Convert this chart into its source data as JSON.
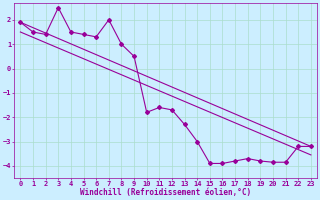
{
  "xlabel": "Windchill (Refroidissement éolien,°C)",
  "xlim": [
    -0.5,
    23.5
  ],
  "ylim": [
    -4.5,
    2.7
  ],
  "yticks": [
    -4,
    -3,
    -2,
    -1,
    0,
    1,
    2
  ],
  "xticks": [
    0,
    1,
    2,
    3,
    4,
    5,
    6,
    7,
    8,
    9,
    10,
    11,
    12,
    13,
    14,
    15,
    16,
    17,
    18,
    19,
    20,
    21,
    22,
    23
  ],
  "bg_color": "#cceeff",
  "grid_color": "#aaddcc",
  "line_color": "#990099",
  "marker": "D",
  "markersize": 2.0,
  "linewidth": 0.8,
  "series1_x": [
    0,
    1,
    2,
    3,
    4,
    5,
    6,
    7,
    8,
    9,
    10,
    11,
    12,
    13,
    14,
    15,
    16,
    17,
    18,
    19,
    20,
    21,
    22,
    23
  ],
  "series1_y": [
    1.9,
    1.5,
    1.4,
    2.5,
    1.5,
    1.4,
    1.3,
    2.0,
    1.0,
    0.5,
    -1.8,
    -1.6,
    -1.7,
    -2.3,
    -3.0,
    -3.9,
    -3.9,
    -3.8,
    -3.7,
    -3.8,
    -3.85,
    -3.85,
    -3.2,
    -3.2
  ],
  "series2_x": [
    0,
    23
  ],
  "series2_y": [
    1.9,
    -3.2
  ],
  "series3_x": [
    0,
    23
  ],
  "series3_y": [
    1.5,
    -3.55
  ],
  "tick_fontsize": 5.0,
  "xlabel_fontsize": 5.5
}
